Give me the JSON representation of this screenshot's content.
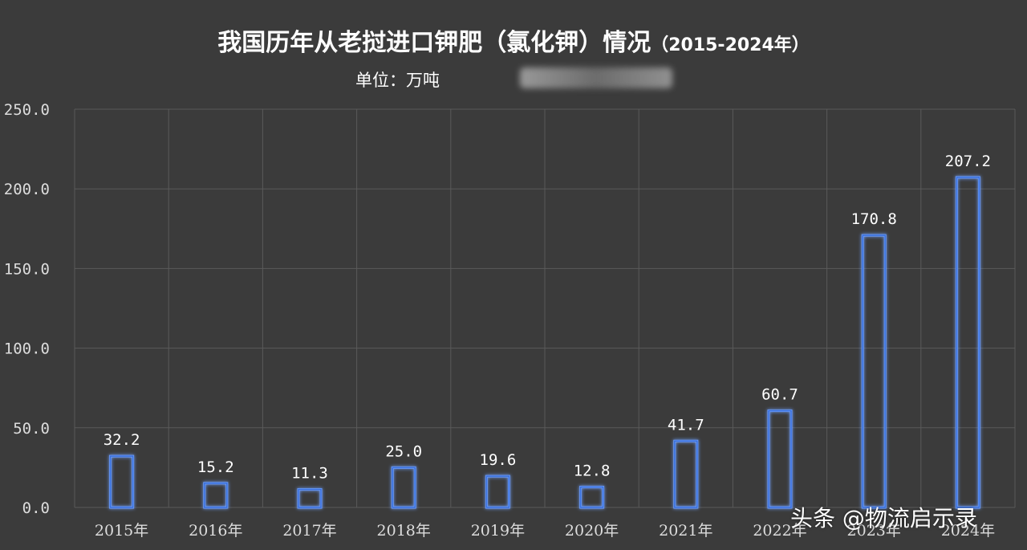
{
  "header": {
    "title_main": "我国历年从老挝进口钾肥（氯化钾）情况",
    "title_years": "（2015-2024年）",
    "unit": "单位：万吨"
  },
  "watermark": "头条 @物流启示录",
  "colors": {
    "background": "#3b3b3b",
    "grid": "#5a5a5a",
    "bar_stroke": "#3a6fd8",
    "bar_glow": "#6fa0ff",
    "text": "#ffffff",
    "tick_text": "#dddddd"
  },
  "chart_data": {
    "type": "bar",
    "categories": [
      "2015年",
      "2016年",
      "2017年",
      "2018年",
      "2019年",
      "2020年",
      "2021年",
      "2022年",
      "2023年",
      "2024年"
    ],
    "values": [
      32.2,
      15.2,
      11.3,
      25.0,
      19.6,
      12.8,
      41.7,
      60.7,
      170.8,
      207.2
    ],
    "value_labels": [
      "32.2",
      "15.2",
      "11.3",
      "25.0",
      "19.6",
      "12.8",
      "41.7",
      "60.7",
      "170.8",
      "207.2"
    ],
    "yticks": [
      "0.0",
      "50.0",
      "100.0",
      "150.0",
      "200.0",
      "250.0"
    ],
    "ylim": [
      0,
      250
    ],
    "grid": true,
    "title": "我国历年从老挝进口钾肥（氯化钾）情况（2015-2024年）",
    "xlabel": "",
    "ylabel": ""
  }
}
